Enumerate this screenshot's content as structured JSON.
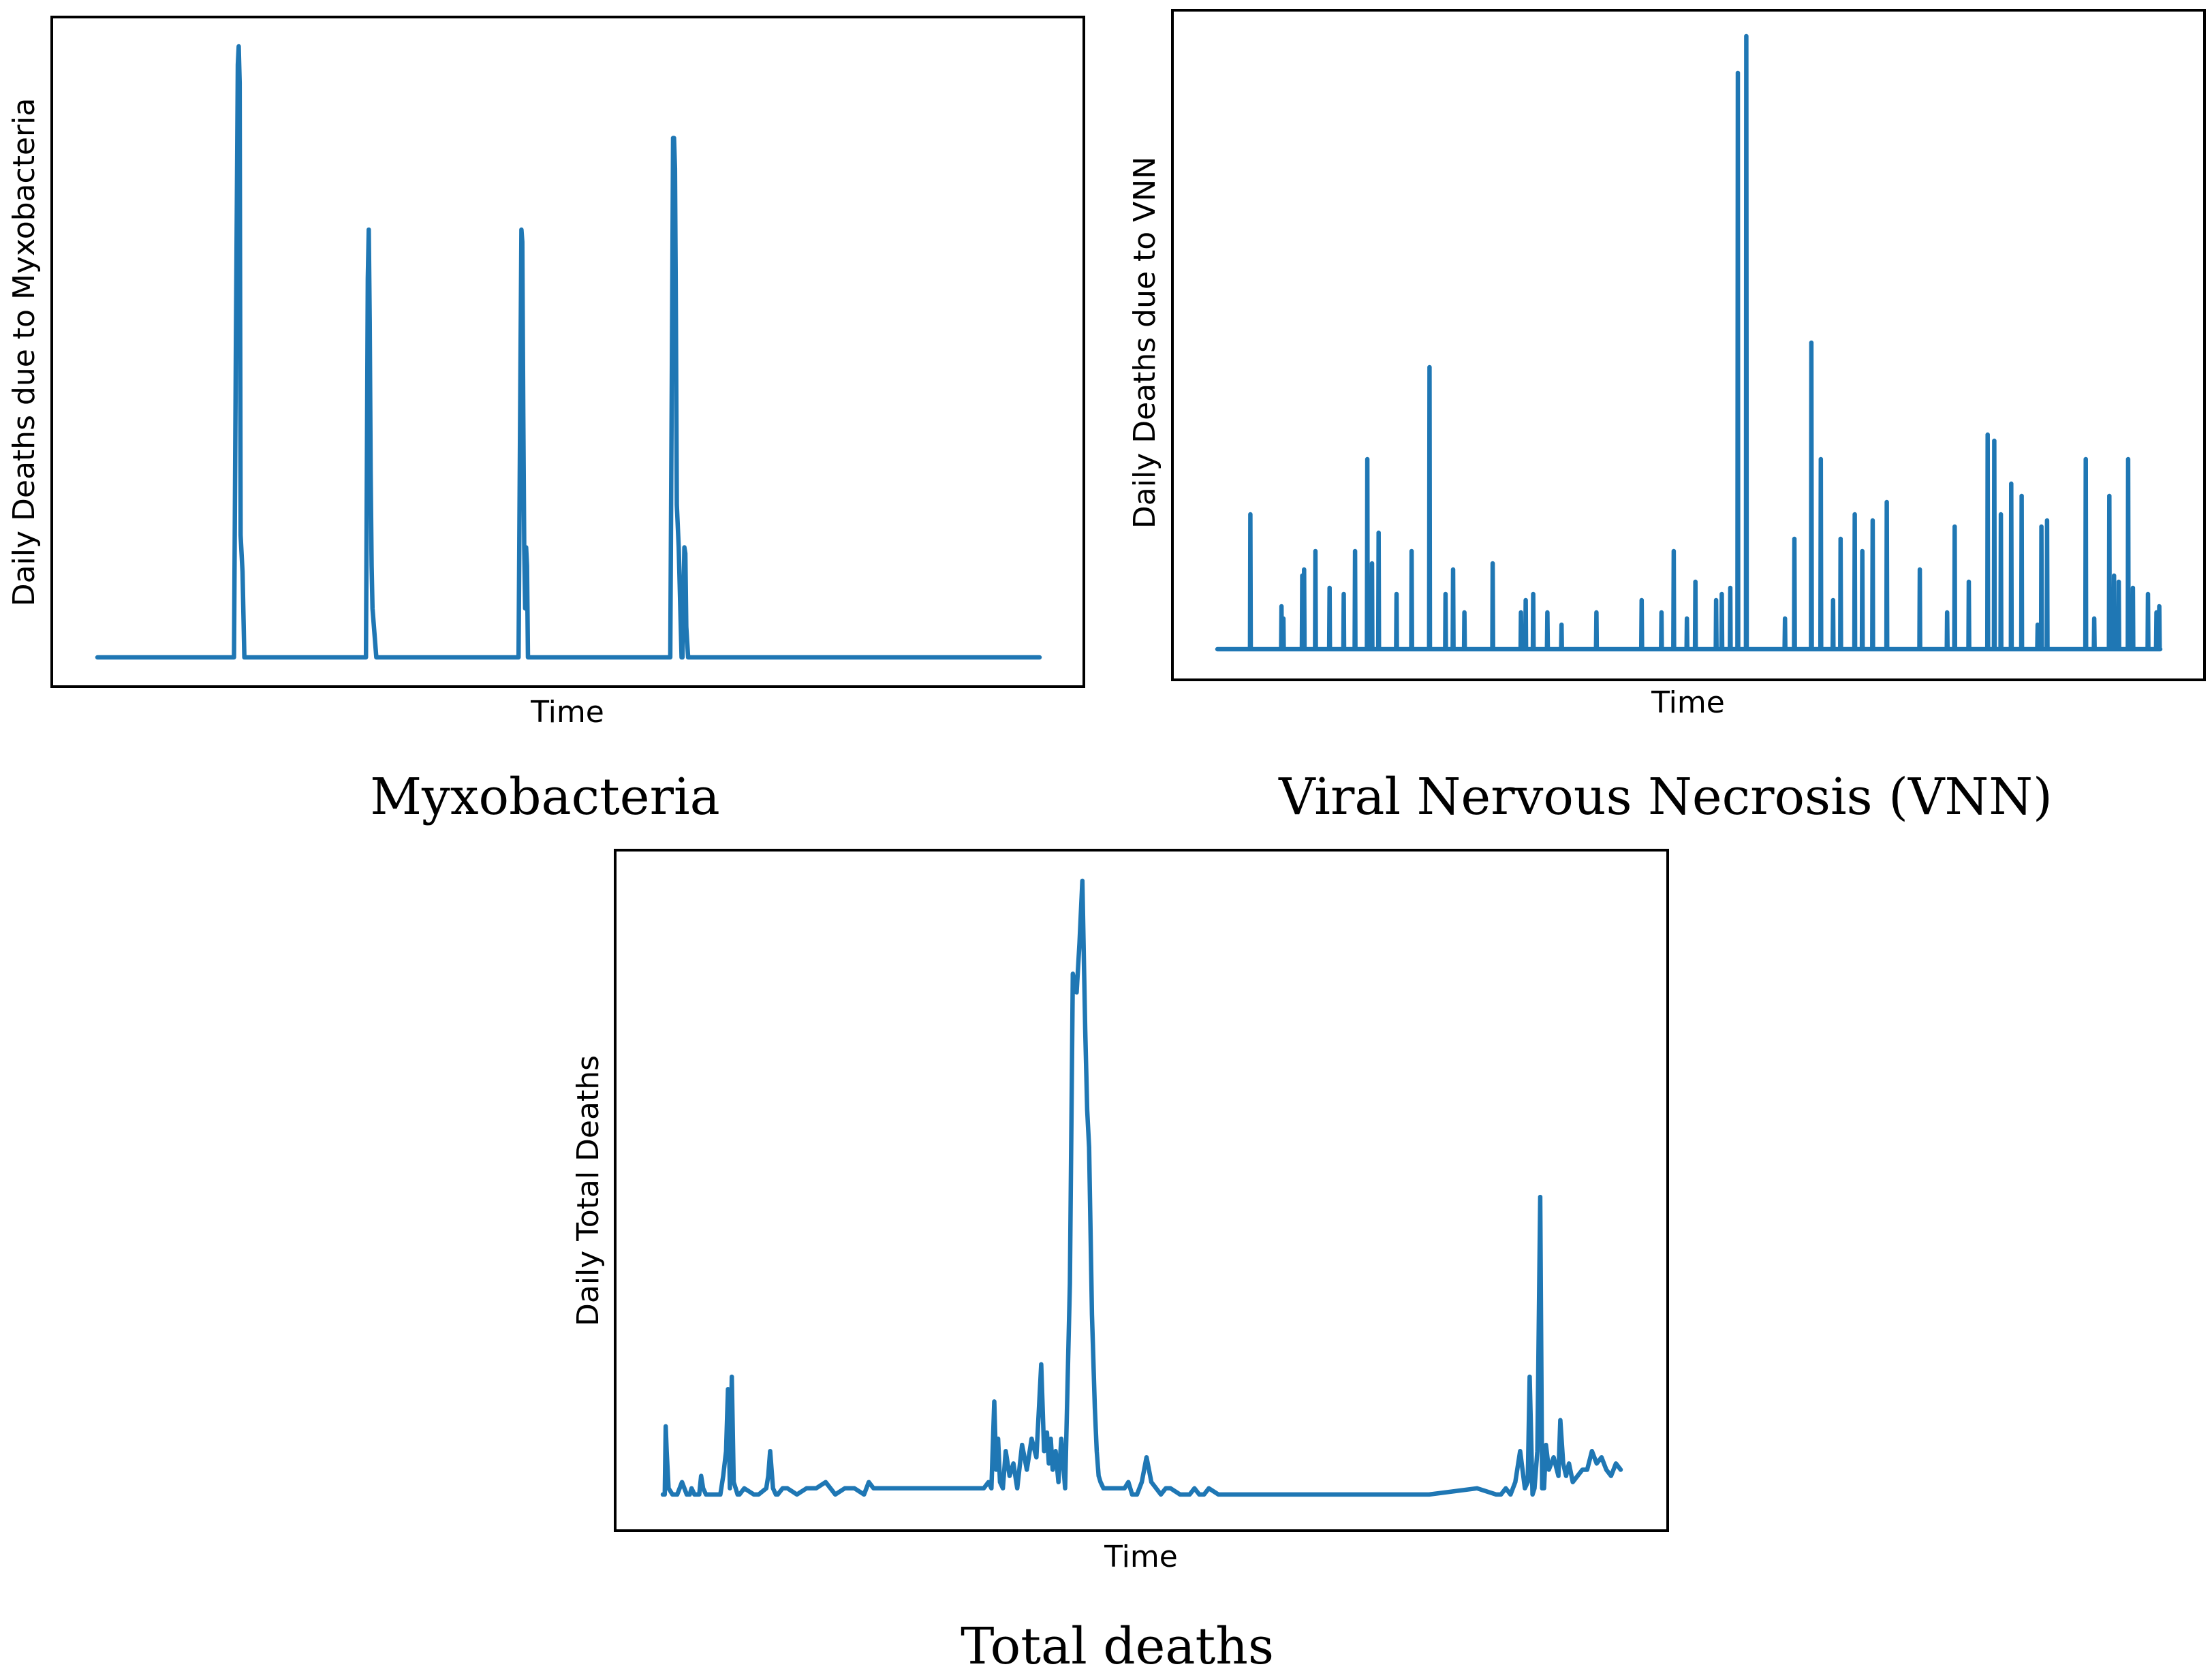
{
  "colors": {
    "series": "#1f77b4",
    "frame": "#000000"
  },
  "charts": [
    {
      "key": "myxo",
      "caption": "Myxobacteria",
      "xlabel": "Time",
      "ylabel": "Daily Deaths due to Myxobacteria"
    },
    {
      "key": "vnn",
      "caption": "Viral Nervous Necrosis (VNN)",
      "xlabel": "Time",
      "ylabel": "Daily Deaths due to VNN"
    },
    {
      "key": "total",
      "caption": "Total deaths",
      "xlabel": "Time",
      "ylabel": "Daily Total Deaths"
    }
  ],
  "chart_data": [
    {
      "type": "line",
      "title": "Myxobacteria",
      "xlabel": "Time",
      "ylabel": "Daily Deaths due to Myxobacteria",
      "xlim": [
        0,
        1000
      ],
      "ylim": [
        0,
        100
      ],
      "ticks": "none",
      "x": [
        0,
        145,
        147,
        149,
        150,
        151,
        152,
        154,
        156,
        157,
        285,
        287,
        288,
        289,
        290,
        291,
        292,
        296,
        300,
        301,
        447,
        449,
        450,
        451,
        452,
        453,
        454,
        455,
        456,
        457,
        458,
        608,
        610,
        611,
        612,
        613,
        614,
        615,
        617,
        618,
        620,
        621,
        623,
        624,
        625,
        627,
        628,
        1000
      ],
      "y": [
        0,
        0,
        52,
        97,
        100,
        94,
        20,
        14,
        0,
        0,
        0,
        62,
        70,
        55,
        30,
        15,
        8,
        0,
        0,
        0,
        0,
        48,
        70,
        68,
        40,
        18,
        8,
        18,
        15,
        0,
        0,
        0,
        55,
        85,
        85,
        80,
        55,
        25,
        18,
        12,
        0,
        0,
        18,
        17,
        5,
        0,
        0,
        0
      ]
    },
    {
      "type": "line",
      "title": "Viral Nervous Necrosis (VNN)",
      "xlabel": "Time",
      "ylabel": "Daily Deaths due to VNN",
      "xlim": [
        0,
        1000
      ],
      "ylim": [
        0,
        100
      ],
      "ticks": "none",
      "spikes": {
        "x": [
          35,
          68,
          70,
          90,
          92,
          104,
          119,
          134,
          146,
          159,
          164,
          171,
          190,
          206,
          225,
          242,
          250,
          262,
          292,
          322,
          327,
          335,
          350,
          365,
          402,
          450,
          471,
          484,
          498,
          507,
          529,
          535,
          544,
          552,
          561,
          602,
          612,
          630,
          640,
          653,
          661,
          676,
          684,
          695,
          710,
          745,
          774,
          782,
          797,
          817,
          824,
          831,
          842,
          853,
          870,
          874,
          880,
          921,
          930,
          946,
          951,
          956,
          966,
          971,
          987,
          996,
          999
        ],
        "y": [
          22,
          7,
          5,
          12,
          13,
          16,
          10,
          9,
          16,
          31,
          14,
          19,
          9,
          16,
          46,
          9,
          13,
          6,
          14,
          6,
          8,
          9,
          6,
          4,
          6,
          8,
          6,
          16,
          5,
          11,
          8,
          9,
          10,
          94,
          100,
          5,
          18,
          50,
          31,
          8,
          18,
          22,
          16,
          21,
          24,
          13,
          6,
          20,
          11,
          35,
          34,
          22,
          27,
          25,
          4,
          20,
          21,
          31,
          5,
          25,
          12,
          11,
          31,
          10,
          9,
          6,
          7
        ]
      }
    },
    {
      "type": "line",
      "title": "Total deaths",
      "xlabel": "Time",
      "ylabel": "Daily Total Deaths",
      "xlim": [
        0,
        1000
      ],
      "ylim": [
        0,
        100
      ],
      "ticks": "none",
      "x": [
        0,
        2,
        3,
        4,
        6,
        10,
        15,
        20,
        25,
        28,
        30,
        33,
        38,
        40,
        42,
        45,
        50,
        55,
        60,
        63,
        66,
        68,
        70,
        72,
        74,
        76,
        78,
        80,
        85,
        95,
        100,
        108,
        110,
        112,
        115,
        118,
        120,
        125,
        130,
        140,
        150,
        160,
        170,
        180,
        190,
        200,
        210,
        215,
        220,
        225,
        230,
        335,
        340,
        343,
        346,
        348,
        350,
        352,
        355,
        358,
        362,
        366,
        370,
        375,
        380,
        385,
        390,
        393,
        395,
        398,
        401,
        403,
        405,
        407,
        410,
        413,
        416,
        420,
        425,
        428,
        432,
        435,
        438,
        441,
        443,
        445,
        448,
        451,
        453,
        455,
        457,
        460,
        463,
        466,
        469,
        472,
        475,
        478,
        482,
        486,
        490,
        495,
        500,
        505,
        510,
        515,
        520,
        525,
        530,
        540,
        550,
        555,
        560,
        565,
        570,
        580,
        590,
        600,
        650,
        700,
        750,
        800,
        850,
        870,
        875,
        880,
        885,
        890,
        895,
        900,
        903,
        905,
        908,
        910,
        913,
        916,
        918,
        920,
        922,
        925,
        930,
        935,
        937,
        940,
        943,
        946,
        950,
        955,
        960,
        965,
        970,
        975,
        980,
        985,
        990,
        995,
        1000
      ],
      "y": [
        1,
        1,
        12,
        8,
        2,
        1,
        1,
        3,
        1,
        1,
        2,
        1,
        1,
        4,
        2,
        1,
        1,
        1,
        1,
        4,
        8,
        18,
        2,
        20,
        3,
        2,
        1,
        1,
        2,
        1,
        1,
        2,
        4,
        8,
        2,
        1,
        1,
        2,
        2,
        1,
        2,
        2,
        3,
        1,
        2,
        2,
        1,
        3,
        2,
        2,
        2,
        2,
        3,
        2,
        16,
        5,
        10,
        3,
        2,
        8,
        4,
        6,
        2,
        9,
        5,
        10,
        7,
        16,
        22,
        8,
        11,
        6,
        10,
        5,
        8,
        3,
        10,
        2,
        35,
        85,
        82,
        90,
        100,
        76,
        63,
        57,
        30,
        15,
        8,
        4,
        3,
        2,
        2,
        2,
        2,
        2,
        2,
        2,
        2,
        3,
        1,
        1,
        3,
        7,
        3,
        2,
        1,
        2,
        2,
        1,
        1,
        2,
        1,
        1,
        2,
        1,
        1,
        1,
        1,
        1,
        1,
        1,
        2,
        1,
        1,
        2,
        1,
        3,
        8,
        2,
        3,
        20,
        1,
        2,
        8,
        49,
        2,
        2,
        9,
        5,
        7,
        4,
        13,
        6,
        4,
        6,
        3,
        4,
        5,
        5,
        8,
        6,
        7,
        5,
        4,
        6,
        5
      ]
    }
  ]
}
